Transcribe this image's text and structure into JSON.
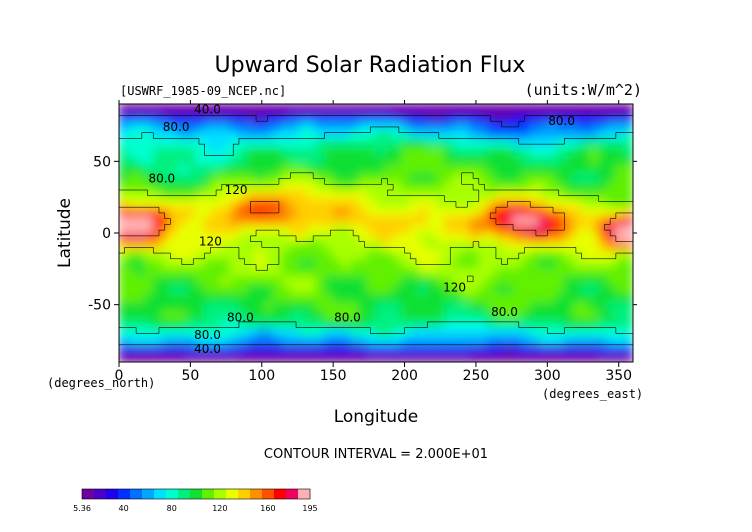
{
  "chart_data": {
    "type": "heatmap",
    "title": "Upward Solar Radiation Flux",
    "source_label": "[USWRF_1985-09_NCEP.nc]",
    "units_label": "(units:W/m^2)",
    "xlabel": "Longitude",
    "ylabel": "Latitude",
    "x_unit_label": "(degrees_east)",
    "y_unit_label": "(degrees_north)",
    "xlim": [
      0,
      360
    ],
    "ylim": [
      -90,
      90
    ],
    "x_ticks": [
      0,
      50,
      100,
      150,
      200,
      250,
      300,
      350
    ],
    "y_ticks": [
      -50,
      0,
      50
    ],
    "contour_interval_text": "CONTOUR INTERVAL = 2.000E+01",
    "contour_labels": [
      {
        "text": "40.0",
        "lon": 62,
        "lat": 86
      },
      {
        "text": "80.0",
        "lon": 40,
        "lat": 74
      },
      {
        "text": "80.0",
        "lon": 310,
        "lat": 78
      },
      {
        "text": "80.0",
        "lon": 30,
        "lat": 38
      },
      {
        "text": "120",
        "lon": 82,
        "lat": 30
      },
      {
        "text": "120",
        "lon": 64,
        "lat": -6
      },
      {
        "text": "120",
        "lon": 235,
        "lat": -38
      },
      {
        "text": "80.0",
        "lon": 85,
        "lat": -59
      },
      {
        "text": "80.0",
        "lon": 160,
        "lat": -59
      },
      {
        "text": "80.0",
        "lon": 270,
        "lat": -55
      },
      {
        "text": "80.0",
        "lon": 62,
        "lat": -71
      },
      {
        "text": "40.0",
        "lon": 62,
        "lat": -81
      }
    ],
    "colorbar": {
      "min": 5.36,
      "max": 195,
      "tick_values": [
        40,
        80,
        120,
        160
      ],
      "tick_labels": [
        "5.36",
        "40",
        "80",
        "120",
        "160",
        "195"
      ],
      "colors": [
        "#7000a0",
        "#4a00c8",
        "#2000f0",
        "#0030ff",
        "#0070ff",
        "#00a8ff",
        "#00e0ff",
        "#00ffd0",
        "#00f080",
        "#10e030",
        "#60f000",
        "#a8ff00",
        "#e8ff00",
        "#ffd000",
        "#ff9000",
        "#ff5000",
        "#ff0000",
        "#f00060",
        "#ffb0b0"
      ]
    },
    "grid": false
  }
}
